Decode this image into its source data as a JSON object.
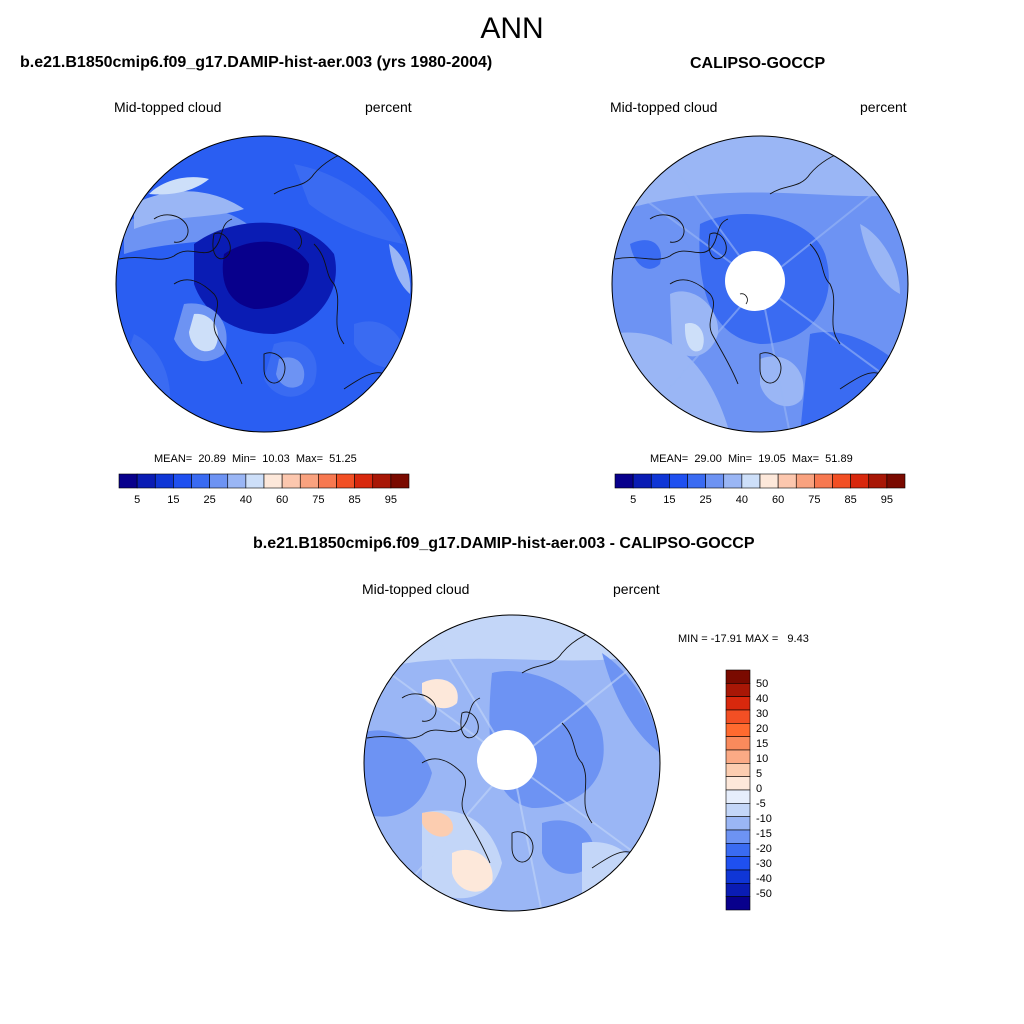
{
  "figure": {
    "title": "ANN"
  },
  "panels": [
    {
      "title": "b.e21.B1850cmip6.f09_g17.DAMIP-hist-aer.003 (yrs 1980-2004)",
      "left_label": "Mid-topped cloud",
      "right_label": "percent",
      "stats": "MEAN=  20.89  Min=  10.03  Max=  51.25"
    },
    {
      "title": "CALIPSO-GOCCP",
      "left_label": "Mid-topped cloud",
      "right_label": "percent",
      "stats": "MEAN=  29.00  Min=  19.05  Max=  51.89"
    },
    {
      "title": "b.e21.B1850cmip6.f09_g17.DAMIP-hist-aer.003 - CALIPSO-GOCCP",
      "left_label": "Mid-topped cloud",
      "right_label": "percent",
      "stats": "MIN = -17.91 MAX =   9.43"
    }
  ],
  "colorbar_abs": {
    "colors": [
      "#08008c",
      "#0a1cb4",
      "#0f36d6",
      "#1f50f0",
      "#3a6bf2",
      "#6d93f3",
      "#9ab6f5",
      "#cddff9",
      "#fde8da",
      "#fcc7ae",
      "#f9a27f",
      "#f77850",
      "#f24f24",
      "#d8280d",
      "#a81706",
      "#7a0a00"
    ],
    "tick_labels": [
      "5",
      "15",
      "25",
      "40",
      "60",
      "75",
      "85",
      "95"
    ]
  },
  "colorbar_diff": {
    "colors": [
      "#7a0a00",
      "#a81706",
      "#d8280d",
      "#f24f24",
      "#ff6a2f",
      "#f98a5c",
      "#fbaa85",
      "#fccdb0",
      "#fde8da",
      "#e6eefc",
      "#c3d6f8",
      "#9ab6f5",
      "#6d93f3",
      "#3a6bf2",
      "#1f50f0",
      "#0f36d6",
      "#0a1cb4",
      "#08008c"
    ],
    "tick_labels": [
      "50",
      "40",
      "30",
      "20",
      "15",
      "10",
      "5",
      "0",
      "-5",
      "-10",
      "-15",
      "-20",
      "-30",
      "-40",
      "-50"
    ]
  }
}
